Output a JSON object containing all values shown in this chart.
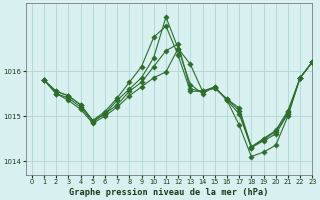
{
  "xlabel": "Graphe pression niveau de la mer (hPa)",
  "xlim": [
    -0.5,
    23
  ],
  "ylim": [
    1013.7,
    1017.5
  ],
  "yticks": [
    1014,
    1015,
    1016
  ],
  "xticks": [
    0,
    1,
    2,
    3,
    4,
    5,
    6,
    7,
    8,
    9,
    10,
    11,
    12,
    13,
    14,
    15,
    16,
    17,
    18,
    19,
    20,
    21,
    22,
    23
  ],
  "bg_color": "#d8f0f0",
  "line_color": "#2d6e2d",
  "grid_color": "#b0d4d4",
  "series": [
    {
      "x": [
        1,
        2,
        3,
        4,
        5,
        6,
        7,
        8,
        9,
        10,
        11,
        12,
        13,
        14,
        15,
        16,
        17,
        18,
        19,
        20,
        21,
        22,
        23
      ],
      "y": [
        1015.8,
        1015.55,
        1015.45,
        1015.25,
        1014.9,
        1015.05,
        1015.35,
        1015.6,
        1015.85,
        1016.3,
        1017.2,
        1016.5,
        1015.7,
        1015.5,
        1015.65,
        1015.35,
        1014.8,
        1014.1,
        1014.2,
        1014.35,
        1015.0,
        1015.85,
        1016.2
      ]
    },
    {
      "x": [
        1,
        2,
        3,
        4,
        5,
        6,
        7,
        8,
        9,
        10,
        11,
        12,
        13,
        14,
        15,
        16,
        17,
        18,
        19,
        20,
        21,
        22,
        23
      ],
      "y": [
        1015.8,
        1015.55,
        1015.45,
        1015.25,
        1014.9,
        1015.1,
        1015.4,
        1015.75,
        1016.1,
        1016.75,
        1017.0,
        1016.35,
        1015.55,
        1015.55,
        1015.65,
        1015.35,
        1015.05,
        1014.3,
        1014.45,
        1014.6,
        1015.05,
        1015.85,
        1016.2
      ]
    },
    {
      "x": [
        1,
        2,
        3,
        4,
        5,
        6,
        7,
        8,
        9,
        10,
        11,
        12,
        13,
        14,
        15,
        16,
        17,
        18,
        19,
        20,
        21,
        22,
        23
      ],
      "y": [
        1015.8,
        1015.5,
        1015.4,
        1015.2,
        1014.87,
        1015.05,
        1015.25,
        1015.55,
        1015.75,
        1016.1,
        1016.45,
        1016.6,
        1015.6,
        1015.55,
        1015.62,
        1015.38,
        1015.12,
        1014.3,
        1014.48,
        1014.65,
        1015.08,
        1015.85,
        1016.2
      ]
    },
    {
      "x": [
        1,
        2,
        3,
        4,
        5,
        6,
        7,
        8,
        9,
        10,
        11,
        12,
        13,
        14,
        15,
        16,
        17,
        18,
        19,
        20,
        21,
        22,
        23
      ],
      "y": [
        1015.8,
        1015.5,
        1015.35,
        1015.15,
        1014.84,
        1015.0,
        1015.2,
        1015.45,
        1015.65,
        1015.85,
        1015.98,
        1016.5,
        1016.15,
        1015.55,
        1015.62,
        1015.38,
        1015.18,
        1014.32,
        1014.5,
        1014.68,
        1015.12,
        1015.85,
        1016.2
      ]
    }
  ],
  "dot_size": 2.8
}
